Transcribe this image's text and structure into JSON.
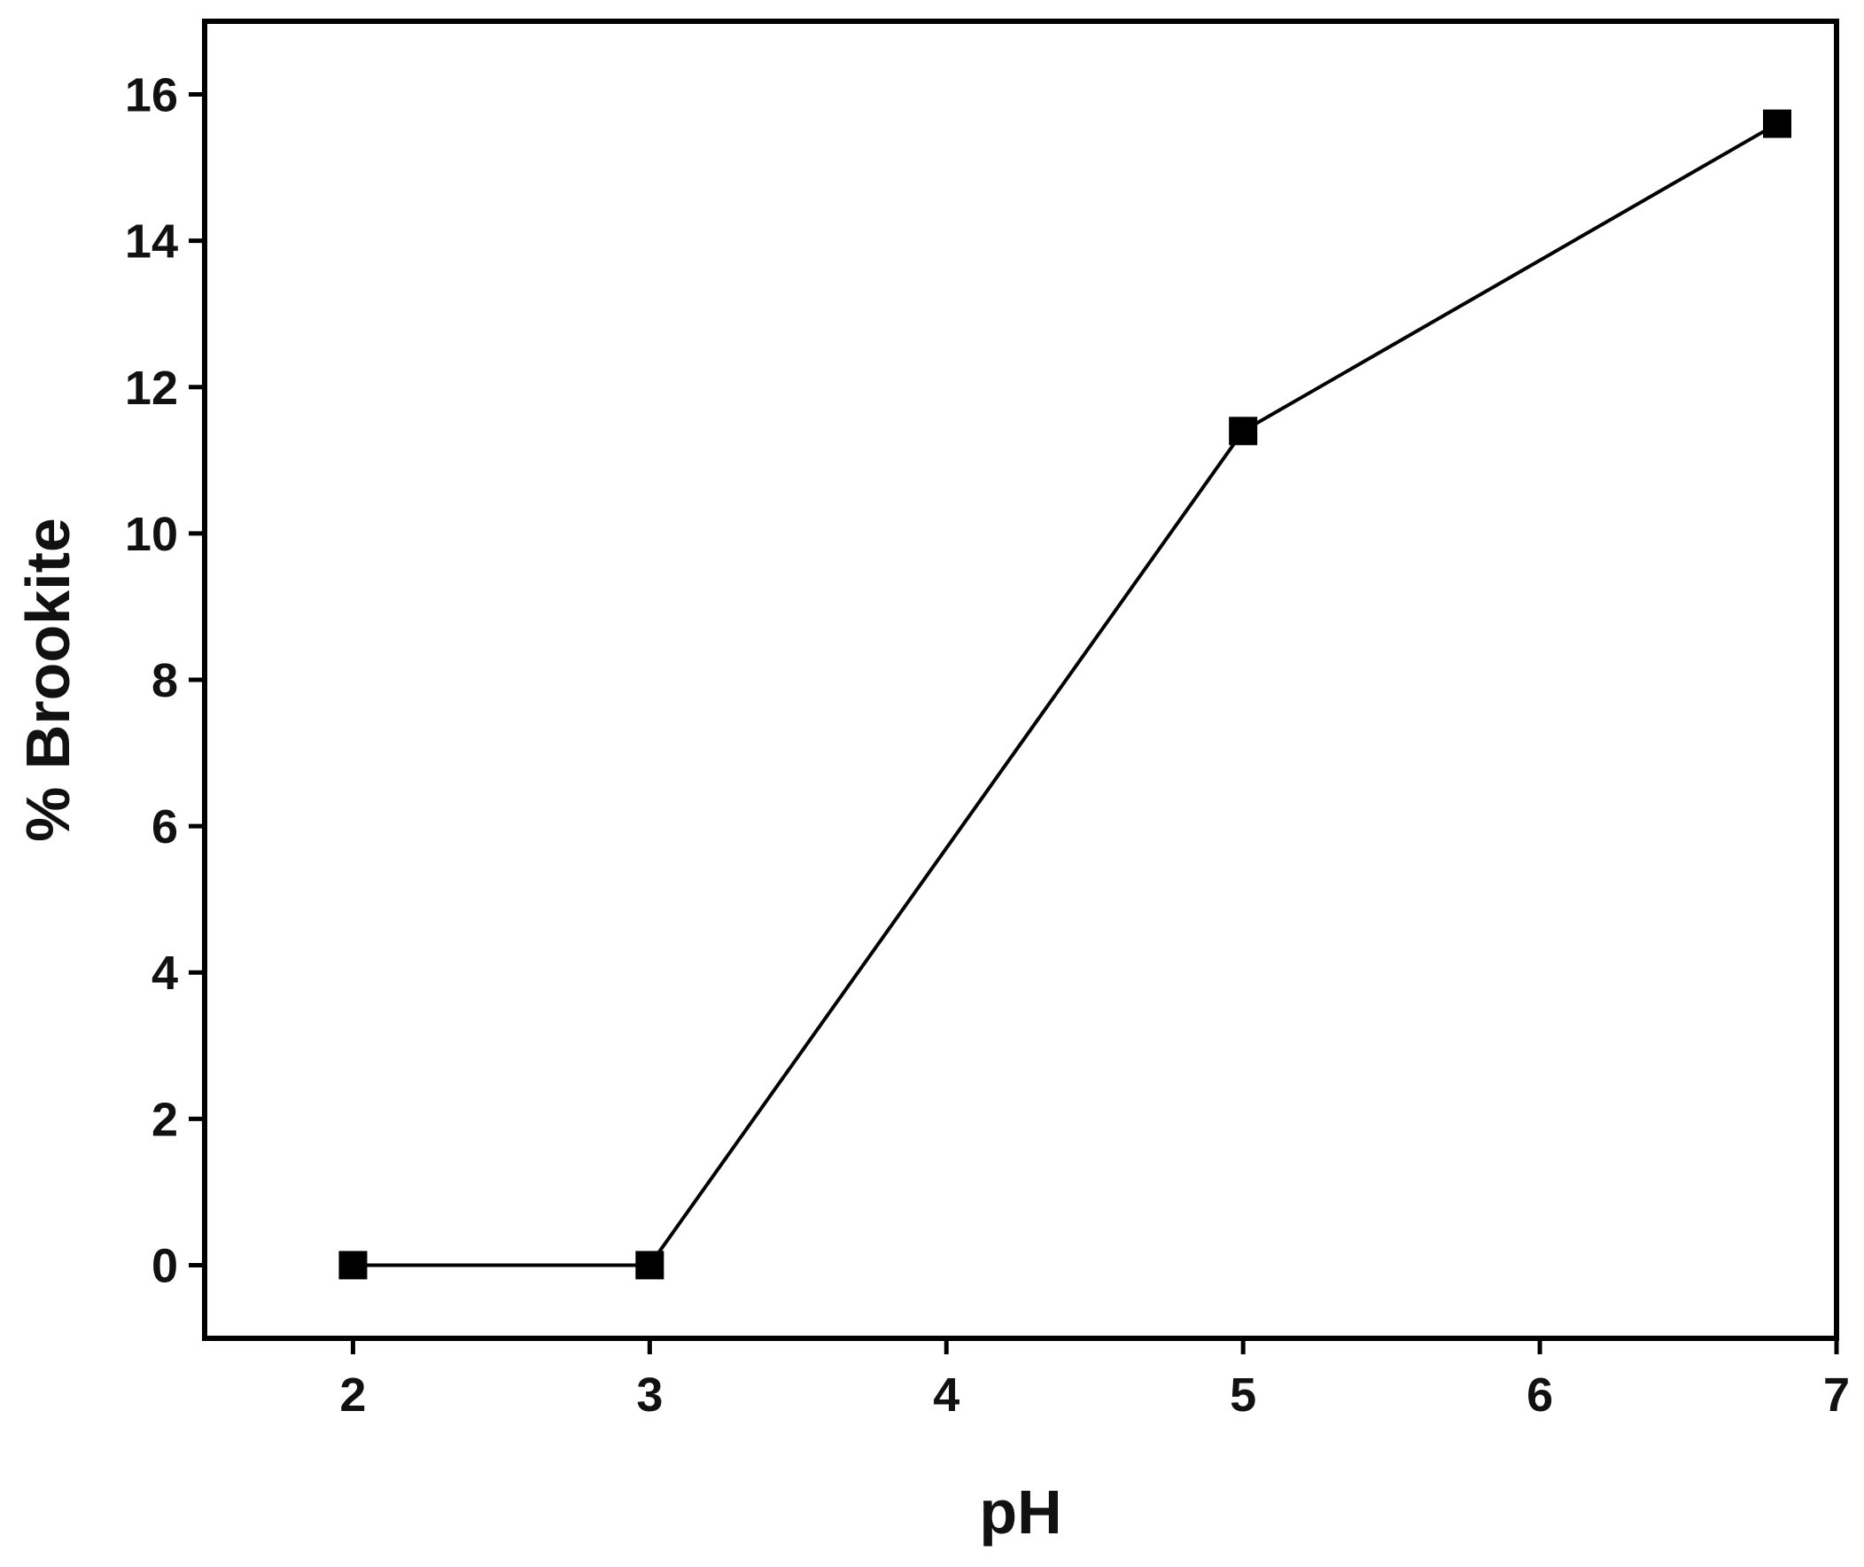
{
  "chart_data": {
    "type": "line",
    "x_label": "pH",
    "y_label": "% Brookite",
    "x": [
      2,
      3,
      5,
      6.8
    ],
    "series": [
      {
        "color": "#000000",
        "values": [
          0,
          0,
          11.4,
          15.6
        ]
      }
    ],
    "xlim": [
      1.5,
      7
    ],
    "xticks": [
      2,
      3,
      4,
      5,
      6,
      7
    ],
    "ylim": [
      -1,
      17
    ],
    "yticks": [
      0,
      2,
      4,
      6,
      8,
      10,
      12,
      14,
      16
    ],
    "grid": false
  }
}
